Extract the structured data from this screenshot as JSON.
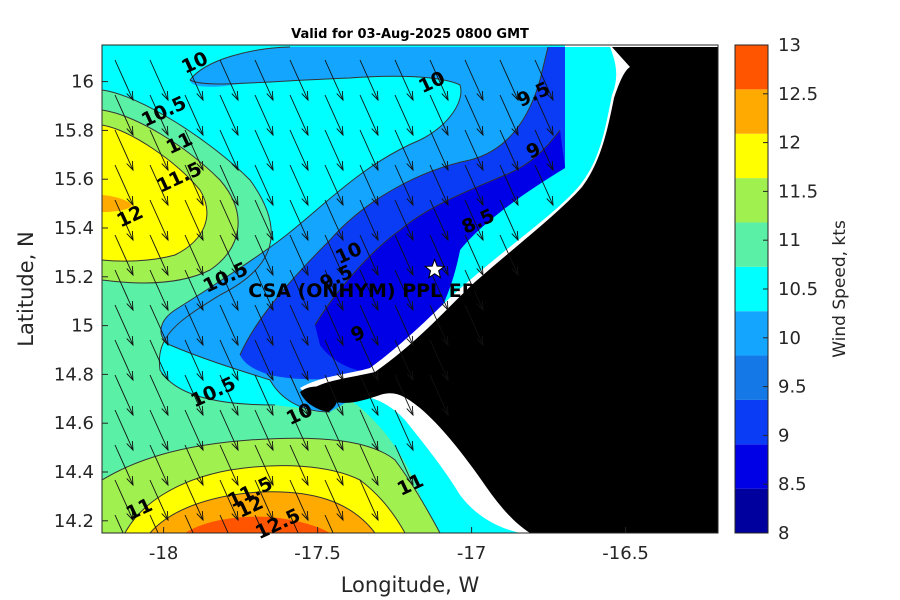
{
  "title": "Valid for 03-Aug-2025 0800 GMT",
  "xlabel": "Longitude, W",
  "ylabel": "Latitude, N",
  "colorbar_label": "Wind Speed, kts",
  "site_label": "CSA (ONHYM) PPL EP",
  "x_ticks": [
    "-18",
    "-17.5",
    "-17",
    "-16.5"
  ],
  "y_ticks": [
    "16",
    "15.8",
    "15.6",
    "15.4",
    "15.2",
    "15",
    "14.8",
    "14.6",
    "14.4",
    "14.2"
  ],
  "colorbar_ticks": [
    "13",
    "12.5",
    "12",
    "11.5",
    "11",
    "10.5",
    "10",
    "9.5",
    "9",
    "8.5",
    "8"
  ],
  "colorbar_colors": [
    "#00009f",
    "#0000e6",
    "#0a3cf5",
    "#1478e6",
    "#14a5ff",
    "#00ffff",
    "#5af0a5",
    "#a0f050",
    "#ffff00",
    "#ffaa00",
    "#ff5500"
  ],
  "land_color": "#000000",
  "contour_labels": [
    {
      "text": "10",
      "lon": -17.9,
      "lat": 16.08
    },
    {
      "text": "10",
      "lon": -17.13,
      "lat": 16.0
    },
    {
      "text": "9.5",
      "lon": -16.8,
      "lat": 15.95
    },
    {
      "text": "9",
      "lon": -16.8,
      "lat": 15.72
    },
    {
      "text": "10.5",
      "lon": -18.0,
      "lat": 15.88
    },
    {
      "text": "11",
      "lon": -17.95,
      "lat": 15.75
    },
    {
      "text": "11.5",
      "lon": -17.95,
      "lat": 15.61
    },
    {
      "text": "12",
      "lon": -18.11,
      "lat": 15.45
    },
    {
      "text": "8.5",
      "lon": -16.98,
      "lat": 15.43
    },
    {
      "text": "10",
      "lon": -17.4,
      "lat": 15.3
    },
    {
      "text": "10.5",
      "lon": -17.8,
      "lat": 15.2
    },
    {
      "text": "9.5",
      "lon": -17.44,
      "lat": 15.2
    },
    {
      "text": "9",
      "lon": -17.37,
      "lat": 14.97
    },
    {
      "text": "10.5",
      "lon": -17.84,
      "lat": 14.73
    },
    {
      "text": "10",
      "lon": -17.56,
      "lat": 14.64
    },
    {
      "text": "11",
      "lon": -17.2,
      "lat": 14.35
    },
    {
      "text": "11.5",
      "lon": -17.72,
      "lat": 14.32
    },
    {
      "text": "12",
      "lon": -17.72,
      "lat": 14.26
    },
    {
      "text": "12.5",
      "lon": -17.63,
      "lat": 14.19
    },
    {
      "text": "11",
      "lon": -18.08,
      "lat": 14.25
    }
  ],
  "chart_data": {
    "type": "heatmap",
    "title": "Valid for 03-Aug-2025 0800 GMT",
    "xlabel": "Longitude, W",
    "ylabel": "Latitude, N",
    "colorbar_label": "Wind Speed, kts",
    "xlim": [
      -18.2,
      -16.2
    ],
    "ylim": [
      14.15,
      16.15
    ],
    "clim": [
      8,
      13
    ],
    "contour_levels": [
      8,
      8.5,
      9,
      9.5,
      10,
      10.5,
      11,
      11.5,
      12,
      12.5,
      13
    ],
    "grid": false,
    "legend": "colorbar-right",
    "site": {
      "name": "CSA (ONHYM) PPL EP",
      "lon": -17.12,
      "lat": 15.23
    }
  }
}
